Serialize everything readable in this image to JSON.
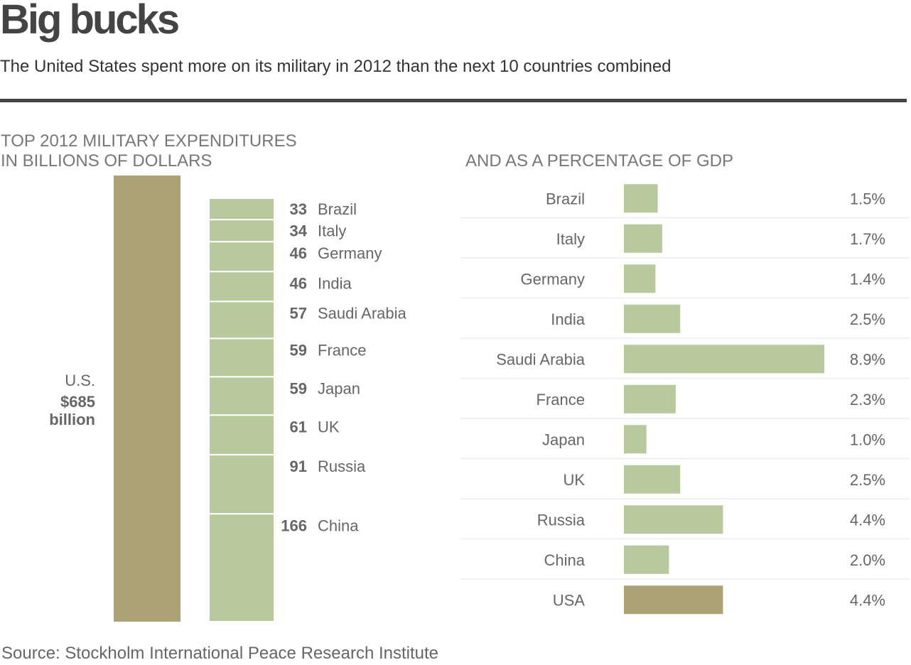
{
  "header": {
    "title": "Big bucks",
    "subtitle": "The United States spent more on its military in 2012 than the next 10 countries combined"
  },
  "left_heading": {
    "line1": "TOP 2012 MILITARY EXPENDITURES",
    "line2": "IN BILLIONS OF DOLLARS"
  },
  "right_heading": "AND AS A PERCENTAGE OF GDP",
  "source": "Source: Stockholm International Peace Research Institute",
  "colors": {
    "us_bar": "#ada176",
    "others_bar": "#b8c99d",
    "label_text": "#666666",
    "row_divider": "#eeeeee"
  },
  "chart_data": [
    {
      "type": "bar",
      "title": "TOP 2012 MILITARY EXPENDITURES IN BILLIONS OF DOLLARS",
      "us": {
        "label": "U.S.",
        "value_label": "$685",
        "unit_label": "billion",
        "value": 685
      },
      "categories": [
        "Brazil",
        "Italy",
        "Germany",
        "India",
        "Saudi Arabia",
        "France",
        "Japan",
        "UK",
        "Russia",
        "China"
      ],
      "values": [
        33,
        34,
        46,
        46,
        57,
        59,
        59,
        61,
        91,
        166
      ],
      "value_labels": [
        "33",
        "34",
        "46",
        "46",
        "57",
        "59",
        "59",
        "61",
        "91",
        "166"
      ]
    },
    {
      "type": "bar",
      "title": "AND AS A PERCENTAGE OF GDP",
      "categories": [
        "Brazil",
        "Italy",
        "Germany",
        "India",
        "Saudi Arabia",
        "France",
        "Japan",
        "UK",
        "Russia",
        "China",
        "USA"
      ],
      "values": [
        1.5,
        1.7,
        1.4,
        2.5,
        8.9,
        2.3,
        1.0,
        2.5,
        4.4,
        2.0,
        4.4
      ],
      "value_labels": [
        "1.5%",
        "1.7%",
        "1.4%",
        "2.5%",
        "8.9%",
        "2.3%",
        "1.0%",
        "2.5%",
        "4.4%",
        "2.0%",
        "4.4%"
      ],
      "highlight": "USA"
    }
  ]
}
